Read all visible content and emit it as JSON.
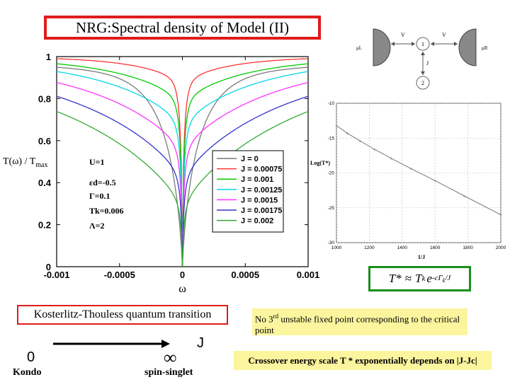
{
  "slide": {
    "title": "NRG:Spectral density of Model (II)",
    "kt_label": "Kosterlitz-Thouless quantum transition",
    "note1_prefix": "No 3",
    "note1_sup": "rd",
    "note1_rest": " unstable fixed point corresponding to the critical point",
    "note2": "Crossover energy scale T * exponentially depends on |J-Jc|",
    "phase_zero": "0",
    "phase_inf": "∞",
    "phase_j": "J",
    "phase_kondo": "Kondo",
    "phase_singlet": "spin-singlet",
    "formula": {
      "lhs": "T*",
      "approx": "≈",
      "tk": "T",
      "tk_sub": "k",
      "e": "e",
      "exponent": "-cΓ",
      "exp_sub": "k",
      "exp_tail": "/J"
    }
  },
  "schematic": {
    "lead_left": "μL",
    "lead_right": "μR",
    "v_left": "V",
    "v_right": "V",
    "dot1": "1",
    "dot2": "2",
    "coupling": "J"
  },
  "colors": {
    "title_border": "#e01b1b",
    "formula_border": "#1a8f1a",
    "note_bg": "#fbf59e"
  },
  "chart_data": [
    {
      "type": "line",
      "ylabel_main": "T(ω) / T",
      "ylabel_sub": "max",
      "xlabel": "ω",
      "xlim": [
        -0.001,
        0.001
      ],
      "ylim": [
        0,
        1
      ],
      "xticks": [
        "-0.001",
        "-0.0005",
        "0",
        "0.0005",
        "0.001"
      ],
      "yticks": [
        "0",
        "0.2",
        "0.4",
        "0.6",
        "0.8",
        "1"
      ],
      "params": [
        "U=1",
        "εd=-0.5",
        "Γ=0.1",
        "Tk=0.006",
        "Λ=2"
      ],
      "legend_position": "center-right",
      "series": [
        {
          "name": "J = 0",
          "color": "#7a7a7a",
          "depth": 0.065,
          "width": 0.00013,
          "floor": 0.935,
          "tip": 0.0
        },
        {
          "name": "J = 0.00075",
          "color": "#ff3333",
          "depth": 0.13,
          "width": 0.00035,
          "floor": 0.87,
          "tip": 0.0
        },
        {
          "name": "J = 0.001",
          "color": "#00cc00",
          "depth": 0.22,
          "width": 0.0005,
          "floor": 0.78,
          "tip": 0.0
        },
        {
          "name": "J = 0.00125",
          "color": "#00d8e8",
          "depth": 0.33,
          "width": 0.00062,
          "floor": 0.67,
          "tip": 0.0
        },
        {
          "name": "J = 0.0015",
          "color": "#ff33ff",
          "depth": 0.45,
          "width": 0.00075,
          "floor": 0.55,
          "tip": 0.0
        },
        {
          "name": "J = 0.00175",
          "color": "#3333cc",
          "depth": 0.58,
          "width": 0.00088,
          "floor": 0.42,
          "tip": 0.0
        },
        {
          "name": "J = 0.002",
          "color": "#33aa33",
          "depth": 0.71,
          "width": 0.001,
          "floor": 0.29,
          "tip": 0.0
        }
      ]
    },
    {
      "type": "line",
      "ylabel": "Log(T*)",
      "xlabel": "1/J",
      "xlim": [
        1000,
        2000
      ],
      "ylim": [
        -30,
        -10
      ],
      "xticks": [
        "1000",
        "1200",
        "1400",
        "1600",
        "1800",
        "2000"
      ],
      "yticks": [
        "-10",
        "-15",
        "-20",
        "-25",
        "-30"
      ],
      "grid": true,
      "series": [
        {
          "name": "",
          "x": [
            1000,
            1067,
            1143,
            1231,
            1333,
            1455,
            1600,
            1778,
            2000
          ],
          "y": [
            -13.2,
            -14.3,
            -15.4,
            -16.6,
            -17.9,
            -19.4,
            -21.1,
            -23.3,
            -26.0
          ]
        }
      ]
    }
  ]
}
